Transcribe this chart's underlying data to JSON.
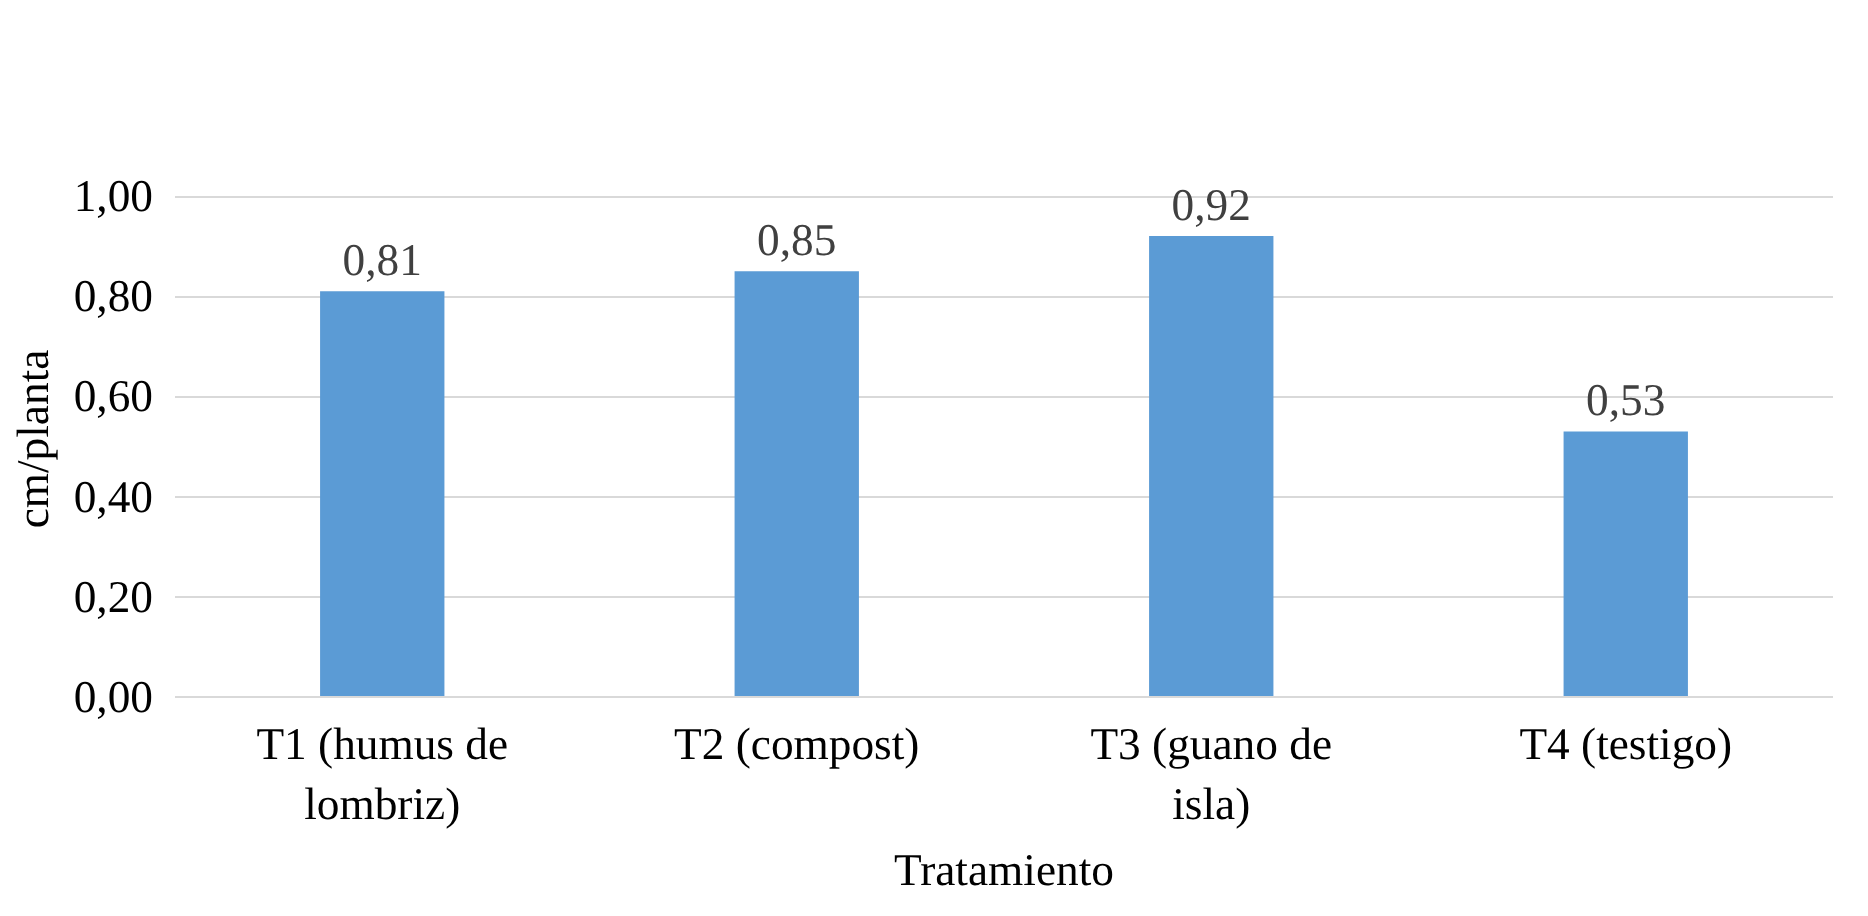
{
  "chart_data": {
    "type": "bar",
    "categories": [
      "T1 (humus de lombriz)",
      "T2 (compost)",
      "T3 (guano de isla)",
      "T4 (testigo)"
    ],
    "values": [
      0.81,
      0.85,
      0.92,
      0.53
    ],
    "value_labels": [
      "0,81",
      "0,85",
      "0,92",
      "0,53"
    ],
    "color": "#5b9bd5",
    "xlabel": "Tratamiento",
    "ylabel": "cm/planta",
    "ylim": [
      0,
      1.0
    ],
    "yticks": [
      {
        "value": 0,
        "label": "0,00"
      },
      {
        "value": 0.2,
        "label": "0,20"
      },
      {
        "value": 0.4,
        "label": "0,40"
      },
      {
        "value": 0.6,
        "label": "0,60"
      },
      {
        "value": 0.8,
        "label": "0,80"
      },
      {
        "value": 1.0,
        "label": "1,00"
      }
    ],
    "grid": "y"
  }
}
